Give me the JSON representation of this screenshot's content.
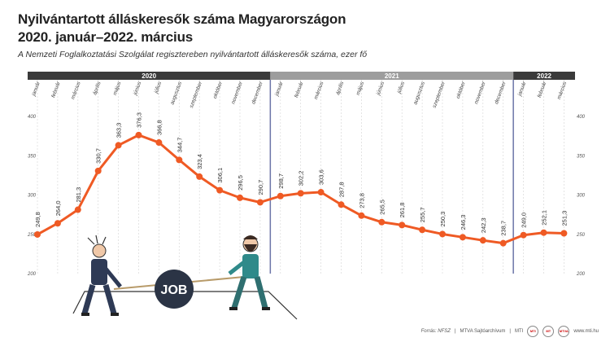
{
  "title_line1": "Nyilvántartott álláskeresők száma Magyarországon",
  "title_line2": "2020. január–2022. március",
  "subtitle": "A Nemzeti Foglalkoztatási Szolgálat regisztereben nyilvántartott álláskeresők száma, ezer fő",
  "footer": {
    "source": "Forrás: NFSZ",
    "archive": "MTVA Sajtóarchívum",
    "agency": "MTI",
    "url": "www.mti.hu",
    "logo1_label": "MTI",
    "logo2_label": "MT",
    "logo3_label": "MTVA"
  },
  "illustration": {
    "ball_label": "JOB"
  },
  "colors": {
    "line": "#ef5a24",
    "year_bar_2020": "#3a3a3a",
    "year_bar_2021": "#9d9d9d",
    "year_bar_2022": "#3a3a3a",
    "divider": "#6b74a8",
    "grid": "#d9d9d9"
  },
  "chart_data": {
    "type": "line",
    "years": [
      {
        "label": "2020",
        "months": 12
      },
      {
        "label": "2021",
        "months": 12
      },
      {
        "label": "2022",
        "months": 3
      }
    ],
    "categories": [
      "január",
      "február",
      "március",
      "április",
      "május",
      "június",
      "július",
      "augusztus",
      "szeptember",
      "október",
      "november",
      "december",
      "január",
      "február",
      "március",
      "április",
      "május",
      "június",
      "július",
      "augusztus",
      "szeptember",
      "október",
      "november",
      "december",
      "január",
      "február",
      "március"
    ],
    "series": [
      {
        "values": [
          249.8,
          264.0,
          281.3,
          330.7,
          363.3,
          376.3,
          366.8,
          344.7,
          323.4,
          306.1,
          296.5,
          290.7,
          298.7,
          302.2,
          303.6,
          287.8,
          273.8,
          265.5,
          261.8,
          255.7,
          250.3,
          246.3,
          242.3,
          238.7,
          249.0,
          252.1,
          251.3
        ],
        "labels": [
          "249,8",
          "264,0",
          "281,3",
          "330,7",
          "363,3",
          "376,3",
          "366,8",
          "344,7",
          "323,4",
          "306,1",
          "296,5",
          "290,7",
          "298,7",
          "302,2",
          "303,6",
          "287,8",
          "273,8",
          "265,5",
          "261,8",
          "255,7",
          "250,3",
          "246,3",
          "242,3",
          "238,7",
          "249,0",
          "252,1",
          "251,3"
        ]
      }
    ],
    "y_ticks": [
      "400",
      "350",
      "300",
      "250",
      "200"
    ],
    "ylim": [
      200,
      400
    ],
    "grid": true
  }
}
